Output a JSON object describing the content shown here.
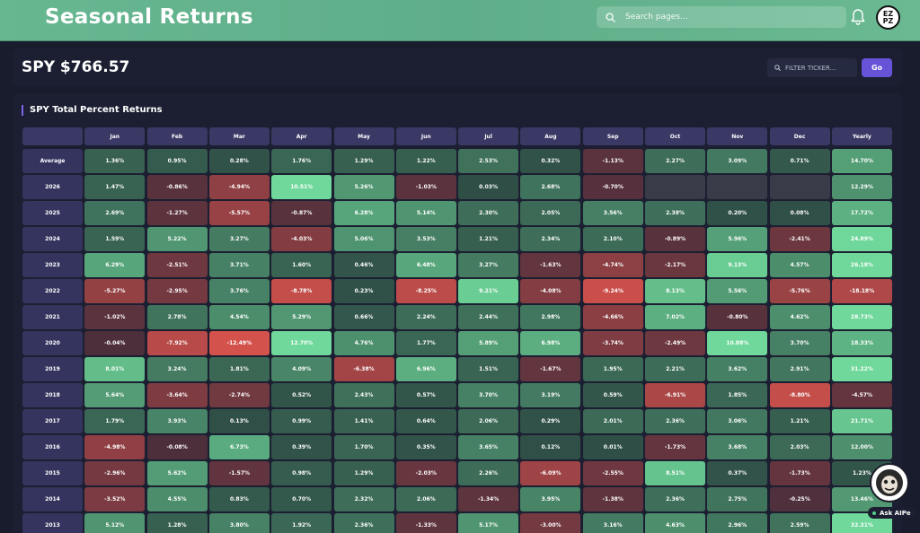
{
  "header": {
    "title": "Seasonal Returns",
    "search_placeholder": "Search pages...",
    "avatar_text": "EZ PZ"
  },
  "ticker": {
    "title": "SPY $766.57",
    "filter_placeholder": "FILTER TICKER...",
    "go_label": "Go"
  },
  "table": {
    "title": "SPY Total Percent Returns",
    "columns": [
      "Jan",
      "Feb",
      "Mar",
      "Apr",
      "May",
      "Jun",
      "Jul",
      "Aug",
      "Sep",
      "Oct",
      "Nov",
      "Dec",
      "Yearly"
    ],
    "rows": [
      {
        "label": "Average",
        "values": [
          "1.36%",
          "0.95%",
          "0.28%",
          "1.76%",
          "1.29%",
          "1.22%",
          "2.53%",
          "0.32%",
          "-1.13%",
          "2.27%",
          "3.09%",
          "0.71%",
          "14.70%"
        ]
      },
      {
        "label": "2026",
        "values": [
          "1.47%",
          "-0.86%",
          "-4.94%",
          "10.51%",
          "5.26%",
          "-1.03%",
          "0.03%",
          "2.68%",
          "-0.70%",
          "",
          "",
          "",
          "12.29%"
        ]
      },
      {
        "label": "2025",
        "values": [
          "2.69%",
          "-1.27%",
          "-5.57%",
          "-0.87%",
          "6.28%",
          "5.14%",
          "2.30%",
          "2.05%",
          "3.56%",
          "2.38%",
          "0.20%",
          "0.08%",
          "17.72%"
        ]
      },
      {
        "label": "2024",
        "values": [
          "1.59%",
          "5.22%",
          "3.27%",
          "-4.03%",
          "5.06%",
          "3.53%",
          "1.21%",
          "2.34%",
          "2.10%",
          "-0.89%",
          "5.96%",
          "-2.41%",
          "24.89%"
        ]
      },
      {
        "label": "2023",
        "values": [
          "6.29%",
          "-2.51%",
          "3.71%",
          "1.60%",
          "0.46%",
          "6.48%",
          "3.27%",
          "-1.63%",
          "-4.74%",
          "-2.17%",
          "9.13%",
          "4.57%",
          "26.18%"
        ]
      },
      {
        "label": "2022",
        "values": [
          "-5.27%",
          "-2.95%",
          "3.76%",
          "-8.78%",
          "0.23%",
          "-8.25%",
          "9.21%",
          "-4.08%",
          "-9.24%",
          "8.13%",
          "5.56%",
          "-5.76%",
          "-18.18%"
        ]
      },
      {
        "label": "2021",
        "values": [
          "-1.02%",
          "2.78%",
          "4.54%",
          "5.29%",
          "0.66%",
          "2.24%",
          "2.44%",
          "2.98%",
          "-4.66%",
          "7.02%",
          "-0.80%",
          "4.62%",
          "28.73%"
        ]
      },
      {
        "label": "2020",
        "values": [
          "-0.04%",
          "-7.92%",
          "-12.49%",
          "12.70%",
          "4.76%",
          "1.77%",
          "5.89%",
          "6.98%",
          "-3.74%",
          "-2.49%",
          "10.88%",
          "3.70%",
          "18.33%"
        ]
      },
      {
        "label": "2019",
        "values": [
          "8.01%",
          "3.24%",
          "1.81%",
          "4.09%",
          "-6.38%",
          "6.96%",
          "1.51%",
          "-1.67%",
          "1.95%",
          "2.21%",
          "3.62%",
          "2.91%",
          "31.22%"
        ]
      },
      {
        "label": "2018",
        "values": [
          "5.64%",
          "-3.64%",
          "-2.74%",
          "0.52%",
          "2.43%",
          "0.57%",
          "3.70%",
          "3.19%",
          "0.59%",
          "-6.91%",
          "1.85%",
          "-8.80%",
          "-4.57%"
        ]
      },
      {
        "label": "2017",
        "values": [
          "1.79%",
          "3.93%",
          "0.13%",
          "0.99%",
          "1.41%",
          "0.64%",
          "2.06%",
          "0.29%",
          "2.01%",
          "2.36%",
          "3.06%",
          "1.21%",
          "21.71%"
        ]
      },
      {
        "label": "2016",
        "values": [
          "-4.98%",
          "-0.08%",
          "6.73%",
          "0.39%",
          "1.70%",
          "0.35%",
          "3.65%",
          "0.12%",
          "0.01%",
          "-1.73%",
          "3.68%",
          "2.03%",
          "12.00%"
        ]
      },
      {
        "label": "2015",
        "values": [
          "-2.96%",
          "5.62%",
          "-1.57%",
          "0.98%",
          "1.29%",
          "-2.03%",
          "2.26%",
          "-6.09%",
          "-2.55%",
          "8.51%",
          "0.37%",
          "-1.73%",
          "1.23%"
        ]
      },
      {
        "label": "2014",
        "values": [
          "-3.52%",
          "4.55%",
          "0.83%",
          "0.70%",
          "2.32%",
          "2.06%",
          "-1.34%",
          "3.95%",
          "-1.38%",
          "2.36%",
          "2.75%",
          "-0.25%",
          "13.46%"
        ]
      },
      {
        "label": "2013",
        "values": [
          "5.12%",
          "1.28%",
          "3.80%",
          "1.92%",
          "2.36%",
          "-1.33%",
          "5.17%",
          "-3.00%",
          "3.16%",
          "4.63%",
          "2.96%",
          "2.59%",
          "32.31%"
        ]
      }
    ]
  },
  "ai": {
    "label": "Ask AIPe"
  },
  "colors": {
    "accent": "#6753d8",
    "header_green": "#67b791",
    "positive_strong": "#6fd89a",
    "negative_strong": "#d4524c",
    "empty_cell": "#3a3b48"
  }
}
